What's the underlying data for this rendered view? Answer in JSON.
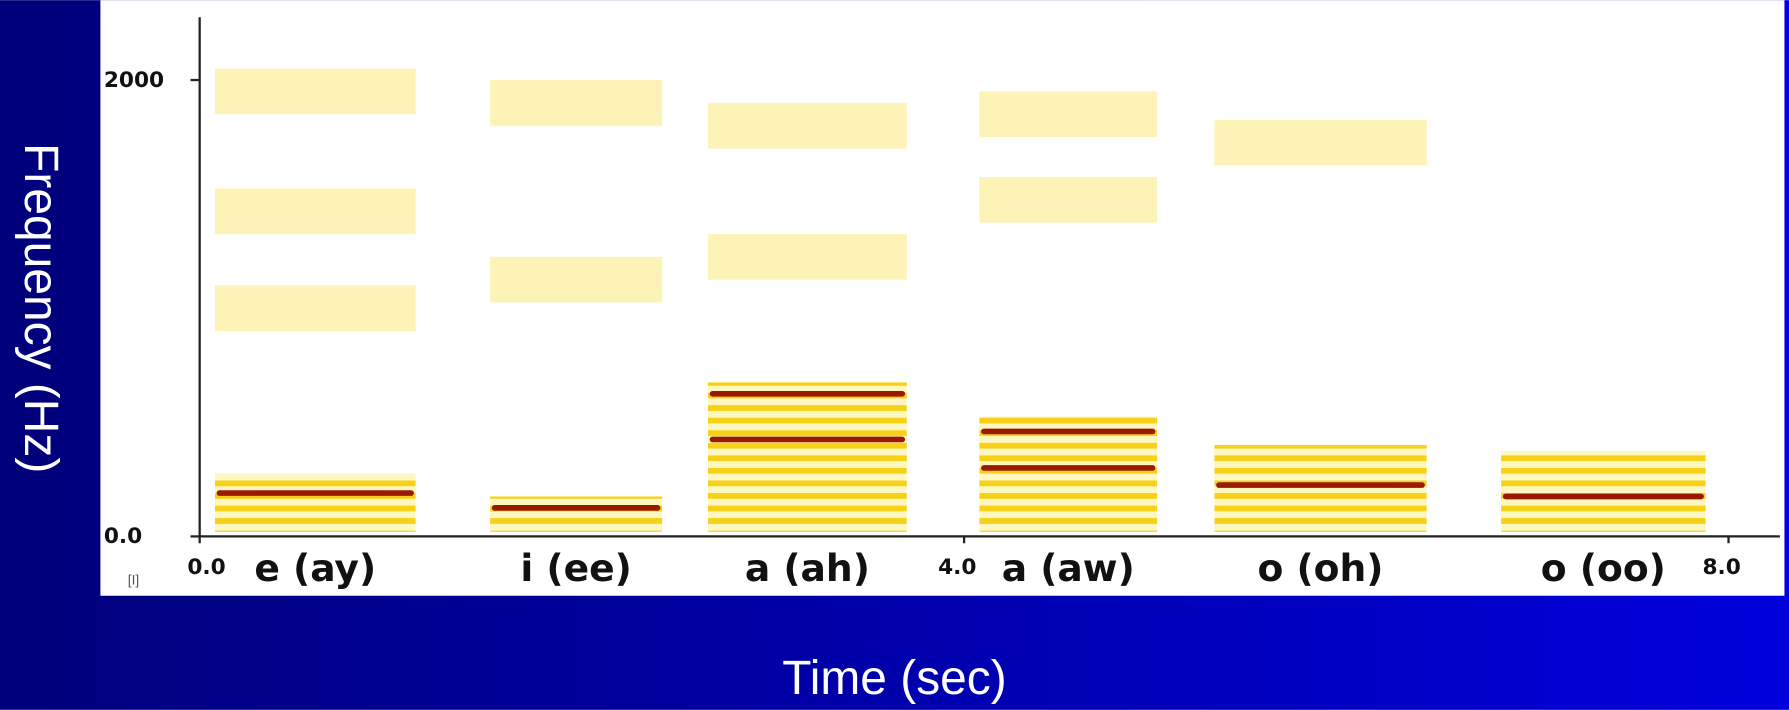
{
  "chart_data": {
    "type": "spectrogram",
    "xlabel": "Time (sec)",
    "ylabel": "Frequency (Hz)",
    "corner_label": "[I]",
    "xlim": [
      0,
      8
    ],
    "xticks": [
      {
        "value": 0,
        "label": "0.0"
      },
      {
        "value": 4,
        "label": "4.0"
      },
      {
        "value": 8,
        "label": "8.0"
      }
    ],
    "ylim": [
      0,
      2275
    ],
    "yticks": [
      {
        "value": 0,
        "label": "0.0"
      },
      2000
    ],
    "categories": [
      "e (ay)",
      "i (ee)",
      "a (ah)",
      "a (aw)",
      "o (oh)",
      "o (oo)"
    ],
    "harmonic_color": "#f7d117",
    "formant_color": "#9a1a00",
    "faint_color": "#fbe97a",
    "segments": [
      {
        "start": 0.08,
        "end": 1.13,
        "top": 275,
        "formants": [
          190
        ],
        "faint": [
          1000,
          1425,
          1950
        ]
      },
      {
        "start": 1.52,
        "end": 2.42,
        "top": 175,
        "formants": [
          125
        ],
        "faint": [
          1125,
          1900
        ]
      },
      {
        "start": 2.66,
        "end": 3.7,
        "top": 675,
        "formants": [
          625,
          425
        ],
        "faint": [
          1225,
          1800
        ]
      },
      {
        "start": 4.08,
        "end": 5.01,
        "top": 525,
        "formants": [
          460,
          300
        ],
        "faint": [
          1475,
          1850
        ]
      },
      {
        "start": 5.31,
        "end": 6.42,
        "top": 400,
        "formants": [
          225
        ],
        "faint": [
          1725
        ]
      },
      {
        "start": 6.81,
        "end": 7.88,
        "top": 375,
        "formants": [
          175
        ],
        "faint": []
      }
    ]
  }
}
